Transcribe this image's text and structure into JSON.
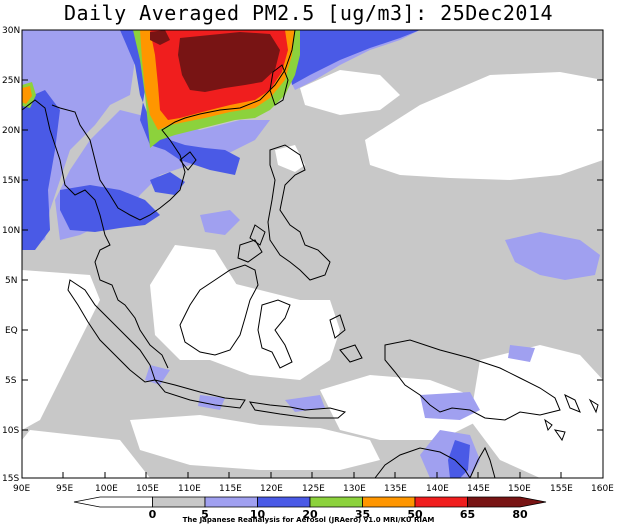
{
  "title": "Daily Averaged PM2.5 [ug/m3]: 25Dec2014",
  "lat_labels": [
    "30N",
    "25N",
    "20N",
    "15N",
    "10N",
    "5N",
    "EQ",
    "5S",
    "10S",
    "15S"
  ],
  "lon_labels": [
    "90E",
    "95E",
    "100E",
    "105E",
    "110E",
    "115E",
    "120E",
    "125E",
    "130E",
    "135E",
    "140E",
    "145E",
    "150E",
    "155E",
    "160E"
  ],
  "colorbar": {
    "levels": [
      "0",
      "5",
      "10",
      "20",
      "35",
      "50",
      "65",
      "80"
    ],
    "colors": [
      "#ffffff",
      "#c8c8c8",
      "#a0a0f0",
      "#4a5ae6",
      "#8cd23c",
      "#ff9600",
      "#f01e1e",
      "#781414"
    ]
  },
  "credit": "The Japanese Reanalysis for Aerosol (JRAero) v1.0 MRI/KU RIAM"
}
